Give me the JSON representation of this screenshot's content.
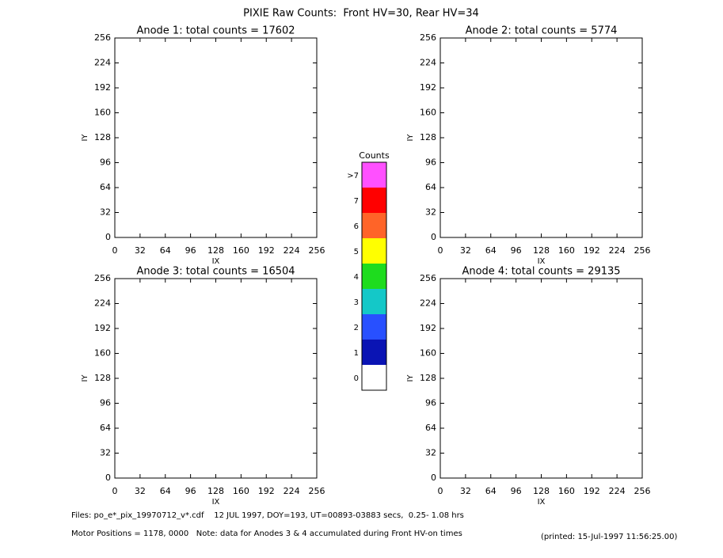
{
  "title": "PIXIE Raw Counts:  Front HV=30, Rear HV=34",
  "chart_data": [
    {
      "type": "heatmap",
      "title": "Anode 1: total counts = 17602",
      "x_label": "IX",
      "y_label": "IY",
      "xlim": [
        0,
        256
      ],
      "ylim": [
        0,
        256
      ],
      "xticks": [
        0,
        32,
        64,
        96,
        128,
        160,
        192,
        224,
        256
      ],
      "yticks": [
        0,
        32,
        64,
        96,
        128,
        160,
        192,
        224,
        256
      ]
    },
    {
      "type": "heatmap",
      "title": "Anode 2: total counts = 5774",
      "x_label": "IX",
      "y_label": "IY",
      "xlim": [
        0,
        256
      ],
      "ylim": [
        0,
        256
      ],
      "xticks": [
        0,
        32,
        64,
        96,
        128,
        160,
        192,
        224,
        256
      ],
      "yticks": [
        0,
        32,
        64,
        96,
        128,
        160,
        192,
        224,
        256
      ]
    },
    {
      "type": "heatmap",
      "title": "Anode 3: total counts = 16504",
      "x_label": "IX",
      "y_label": "IY",
      "xlim": [
        0,
        256
      ],
      "ylim": [
        0,
        256
      ],
      "xticks": [
        0,
        32,
        64,
        96,
        128,
        160,
        192,
        224,
        256
      ],
      "yticks": [
        0,
        32,
        64,
        96,
        128,
        160,
        192,
        224,
        256
      ]
    },
    {
      "type": "heatmap",
      "title": "Anode 4: total counts = 29135",
      "x_label": "IX",
      "y_label": "IY",
      "xlim": [
        0,
        256
      ],
      "ylim": [
        0,
        256
      ],
      "xticks": [
        0,
        32,
        64,
        96,
        128,
        160,
        192,
        224,
        256
      ],
      "yticks": [
        0,
        32,
        64,
        96,
        128,
        160,
        192,
        224,
        256
      ]
    }
  ],
  "colorbar": {
    "title": "Counts",
    "labels": [
      "0",
      "1",
      "2",
      "3",
      "4",
      "5",
      "6",
      "7",
      ">7"
    ],
    "colors": [
      "#ffffff",
      "#0a14b4",
      "#2850ff",
      "#14c8c8",
      "#1edc1e",
      "#ffff00",
      "#ff6428",
      "#ff0000",
      "#ff50ff"
    ]
  },
  "footer": {
    "files": "Files: po_e*_pix_19970712_v*.cdf    12 JUL 1997, DOY=193, UT=00893-03883 secs,  0.25- 1.08 hrs",
    "motor": "Motor Positions = 1178, 0000   Note: data for Anodes 3 & 4 accumulated during Front HV-on times",
    "printed": "(printed: 15-Jul-1997 11:56:25.00)"
  }
}
